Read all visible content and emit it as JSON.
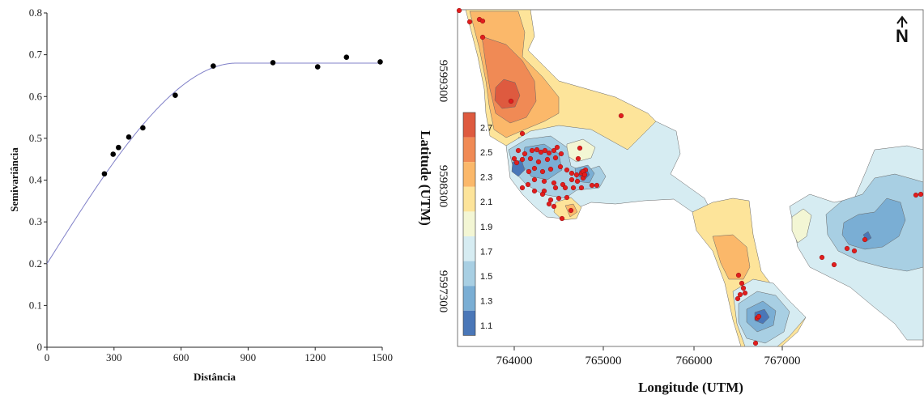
{
  "chart_data": [
    {
      "type": "scatter",
      "title": "",
      "xlabel": "Distância",
      "ylabel": "Semivariância",
      "xlim": [
        0,
        1500
      ],
      "ylim": [
        0,
        0.8
      ],
      "xticks": [
        "0",
        "300",
        "600",
        "900",
        "1200",
        "1500"
      ],
      "yticks": [
        "0",
        "0.1",
        "0.2",
        "0.3",
        "0.4",
        "0.5",
        "0.6",
        "0.7",
        "0.8"
      ],
      "points": [
        {
          "x": 257,
          "y": 0.415
        },
        {
          "x": 296,
          "y": 0.462
        },
        {
          "x": 320,
          "y": 0.478
        },
        {
          "x": 366,
          "y": 0.503
        },
        {
          "x": 429,
          "y": 0.525
        },
        {
          "x": 574,
          "y": 0.603
        },
        {
          "x": 744,
          "y": 0.673
        },
        {
          "x": 1011,
          "y": 0.681
        },
        {
          "x": 1211,
          "y": 0.671
        },
        {
          "x": 1340,
          "y": 0.694
        },
        {
          "x": 1491,
          "y": 0.683
        }
      ],
      "model_curve": {
        "nugget": 0.2,
        "sill": 0.68,
        "range": 850,
        "color": "#8080c8"
      },
      "marker_color": "#000000"
    },
    {
      "type": "heatmap",
      "title": "",
      "xlabel": "Longitude (UTM)",
      "ylabel": "Latitude (UTM)",
      "xticks": [
        "764000",
        "765000",
        "766000",
        "767000"
      ],
      "yticks": [
        "9599300",
        "9598300",
        "9597300"
      ],
      "north_label": "N",
      "legend": {
        "placement": "left-inside",
        "levels": [
          "2.7",
          "2.5",
          "2.3",
          "2.1",
          "1.9",
          "1.7",
          "1.5",
          "1.3",
          "1.1"
        ],
        "colors": [
          "#de5a3f",
          "#f08a55",
          "#fbb86a",
          "#fde49a",
          "#f3f6d4",
          "#d6ecf2",
          "#a8cfe3",
          "#7aaed4",
          "#4a77b8"
        ]
      },
      "sample_color": "#e11d1d"
    }
  ]
}
